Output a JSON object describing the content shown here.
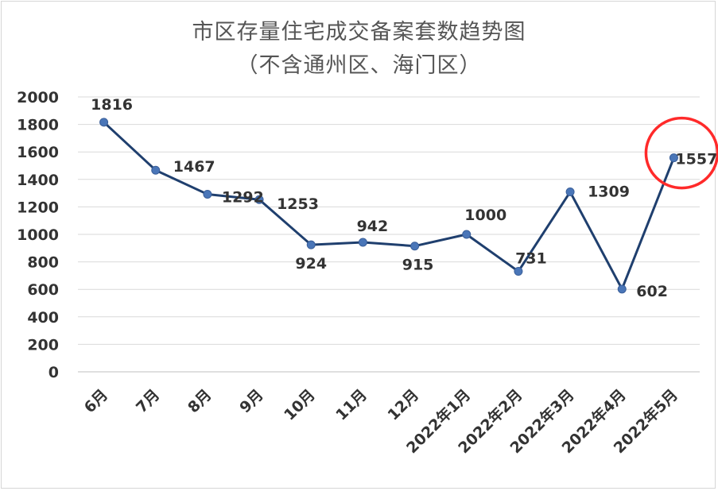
{
  "chart_data": {
    "type": "line",
    "title": "市区存量住宅成交备案套数趋势图",
    "subtitle": "（不含通州区、海门区）",
    "categories": [
      "6月",
      "7月",
      "8月",
      "9月",
      "10月",
      "11月",
      "12月",
      "2022年1月",
      "2022年2月",
      "2022年3月",
      "2022年4月",
      "2022年5月"
    ],
    "series": [
      {
        "values": [
          1816,
          1467,
          1292,
          1253,
          924,
          942,
          915,
          1000,
          731,
          1309,
          602,
          1557
        ]
      }
    ],
    "data_labels": [
      "1816",
      "1467",
      "1292",
      "1253",
      "924",
      "942",
      "915",
      "1000",
      "731",
      "1309",
      "602",
      "1557"
    ],
    "ylim": [
      0,
      2000
    ],
    "yticks": [
      "0",
      "200",
      "400",
      "600",
      "800",
      "1000",
      "1200",
      "1400",
      "1600",
      "1800",
      "2000"
    ],
    "grid": true,
    "legend": "none",
    "highlight_index": 11,
    "colors": {
      "line": "#1f3f6e",
      "marker": "#4a76b8",
      "grid": "#d9d9d9",
      "highlight": "#ff2a2a"
    }
  }
}
